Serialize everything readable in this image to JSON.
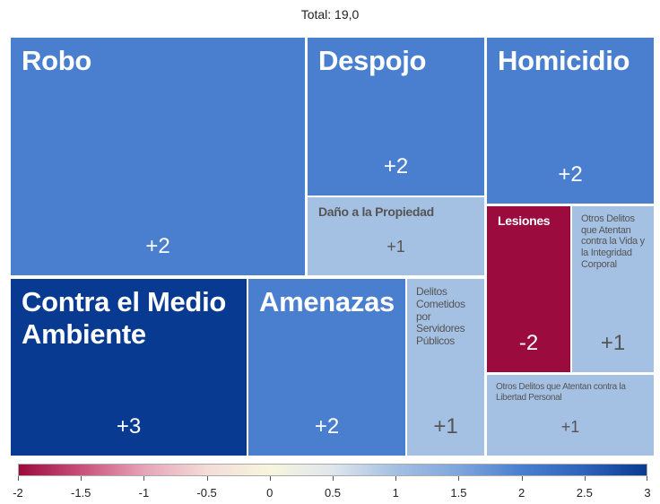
{
  "chart_data": {
    "type": "treemap",
    "title": "Total: 19,0",
    "categories": [
      "Robo",
      "Despojo",
      "Daño a la Propiedad",
      "Homicidio",
      "Lesiones",
      "Otros Delitos que Atentan contra la Vida y la Integridad Corporal",
      "Contra el Medio Ambiente",
      "Amenazas",
      "Delitos Cometidos por Servidores Públicos",
      "Otros Delitos que Atentan contra la Libertad Personal"
    ],
    "values": [
      2,
      2,
      1,
      2,
      -2,
      1,
      3,
      2,
      1,
      1
    ],
    "value_labels": [
      "+2",
      "+2",
      "+1",
      "+2",
      "-2",
      "+1",
      "+3",
      "+2",
      "+1",
      "+1"
    ],
    "clim": [
      -2,
      3
    ],
    "colorscale": [
      "#9b0b3d",
      "#c9507a",
      "#e6a5b8",
      "#f4dcd8",
      "#f8f6dc",
      "#dfe6ee",
      "#a4c0e3",
      "#7ea6dd",
      "#4a7fcf",
      "#2f62bb",
      "#083a91"
    ],
    "cticks": [
      -2,
      -1.5,
      -1,
      -0.5,
      0,
      0.5,
      1,
      1.5,
      2,
      2.5,
      3
    ]
  }
}
